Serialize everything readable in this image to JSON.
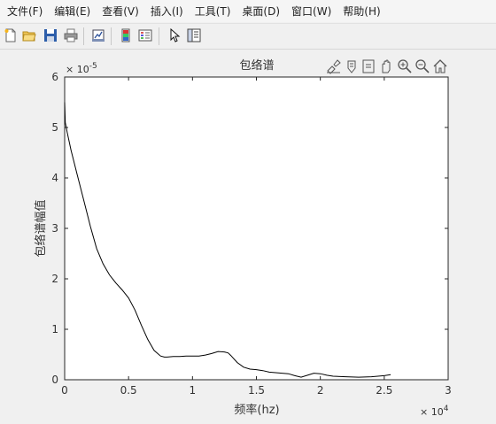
{
  "menu": [
    "文件(F)",
    "编辑(E)",
    "查看(V)",
    "插入(I)",
    "工具(T)",
    "桌面(D)",
    "窗口(W)",
    "帮助(H)"
  ],
  "toolbar": {
    "icons": [
      "new-file-icon",
      "open-file-icon",
      "save-icon",
      "print-icon",
      "link-plot-icon",
      "insert-colorbar-icon",
      "insert-legend-icon",
      "edit-plot-icon",
      "property-inspector-icon"
    ]
  },
  "axes_toolbar": {
    "icons": [
      "brush-icon",
      "data-tips-icon",
      "export-icon",
      "pan-icon",
      "zoom-in-icon",
      "zoom-out-icon",
      "home-icon"
    ]
  },
  "chart_data": {
    "type": "line",
    "title": "包络谱",
    "xlabel": "频率(hz)",
    "ylabel": "包络谱幅值",
    "x_exponent_label": "× 10",
    "x_exponent": "4",
    "y_exponent_label": "× 10",
    "y_exponent": "-5",
    "xlim": [
      0,
      3
    ],
    "ylim": [
      0,
      6
    ],
    "xticks": [
      "0",
      "0.5",
      "1",
      "1.5",
      "2",
      "2.5",
      "3"
    ],
    "yticks": [
      "0",
      "1",
      "2",
      "3",
      "4",
      "5",
      "6"
    ],
    "xtick_values": [
      0,
      0.5,
      1,
      1.5,
      2,
      2.5,
      3
    ],
    "ytick_values": [
      0,
      1,
      2,
      3,
      4,
      5,
      6
    ],
    "line_color": "#000000",
    "series": [
      {
        "x": [
          0,
          0.005,
          0.02,
          0.05,
          0.1,
          0.15,
          0.2,
          0.25,
          0.3,
          0.35,
          0.4,
          0.45,
          0.5,
          0.55,
          0.6,
          0.65,
          0.7,
          0.75,
          0.78,
          0.8,
          0.85,
          0.9,
          0.95,
          1.0,
          1.05,
          1.1,
          1.15,
          1.2,
          1.25,
          1.28,
          1.3,
          1.35,
          1.4,
          1.45,
          1.5,
          1.55,
          1.6,
          1.65,
          1.7,
          1.75,
          1.8,
          1.85,
          1.9,
          1.95,
          2.0,
          2.05,
          2.1,
          2.2,
          2.3,
          2.4,
          2.5,
          2.55
        ],
        "y": [
          5.5,
          5.1,
          4.9,
          4.55,
          4.05,
          3.55,
          3.05,
          2.6,
          2.3,
          2.08,
          1.92,
          1.78,
          1.62,
          1.38,
          1.08,
          0.8,
          0.58,
          0.47,
          0.45,
          0.45,
          0.46,
          0.46,
          0.47,
          0.47,
          0.47,
          0.49,
          0.52,
          0.56,
          0.55,
          0.53,
          0.48,
          0.34,
          0.25,
          0.21,
          0.2,
          0.18,
          0.15,
          0.14,
          0.13,
          0.12,
          0.08,
          0.05,
          0.09,
          0.13,
          0.12,
          0.09,
          0.07,
          0.06,
          0.05,
          0.06,
          0.08,
          0.1
        ]
      }
    ]
  }
}
